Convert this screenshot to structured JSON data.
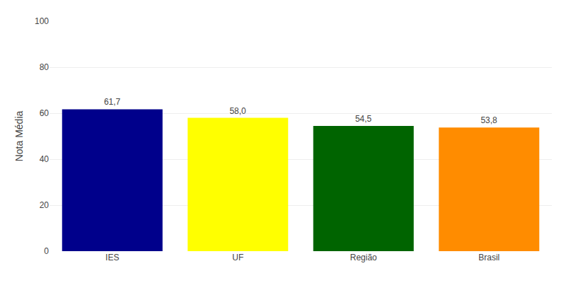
{
  "chart_data": {
    "type": "bar",
    "categories": [
      "IES",
      "UF",
      "Região",
      "Brasil"
    ],
    "values": [
      61.7,
      58.0,
      54.5,
      53.8
    ],
    "value_labels": [
      "61,7",
      "58,0",
      "54,5",
      "53,8"
    ],
    "data_labels": true,
    "colors": [
      "#00008B",
      "#FFFF00",
      "#006400",
      "#FF8C00"
    ],
    "ylabel": "Nota Média",
    "ylim": [
      0,
      100
    ],
    "yticks": [
      0,
      20,
      40,
      60,
      80,
      100
    ],
    "grid": true
  }
}
